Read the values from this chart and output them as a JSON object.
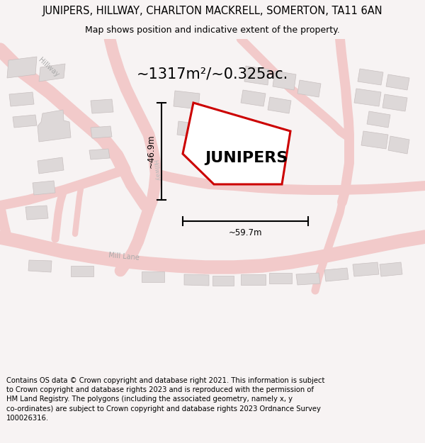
{
  "title": "JUNIPERS, HILLWAY, CHARLTON MACKRELL, SOMERTON, TA11 6AN",
  "subtitle": "Map shows position and indicative extent of the property.",
  "area_text": "~1317m²/~0.325ac.",
  "property_label": "JUNIPERS",
  "dim_vertical": "~46.9m",
  "dim_horizontal": "~59.7m",
  "footer_text": "Contains OS data © Crown copyright and database right 2021. This information is subject to Crown copyright and database rights 2023 and is reproduced with the permission of HM Land Registry. The polygons (including the associated geometry, namely x, y co-ordinates) are subject to Crown copyright and database rights 2023 Ordnance Survey 100026316.",
  "bg_color": "#f7f3f3",
  "map_bg": "#ffffff",
  "road_color": "#f2caca",
  "road_outline_color": "#e8b8b8",
  "building_color": "#ddd8d8",
  "building_edge": "#c8c0c0",
  "property_fill": "#ffffff",
  "property_edge": "#cc0000",
  "title_fontsize": 10.5,
  "subtitle_fontsize": 9,
  "area_fontsize": 15,
  "label_fontsize": 16,
  "dim_fontsize": 8.5,
  "road_label_fontsize": 7,
  "footer_fontsize": 7.2
}
